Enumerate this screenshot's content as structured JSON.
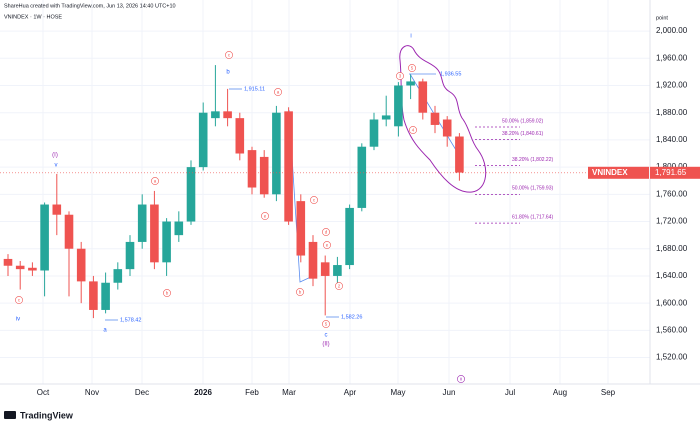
{
  "header": {
    "credit": "ShareHua created with TradingView.com, Jun 13, 2026 14:40 UTC+10",
    "symbol": "VNINDEX · 1W · HOSE"
  },
  "chart_data": {
    "type": "candlestick",
    "axis_unit": "point",
    "up_color": "#26a69a",
    "down_color": "#ef5350",
    "open": [
      1665,
      1655,
      1652,
      1648,
      1745,
      1730,
      1680,
      1632,
      1590,
      1630,
      1650,
      1690,
      1745,
      1660,
      1700,
      1720,
      1800,
      1872,
      1882,
      1872,
      1825,
      1815,
      1760,
      1882,
      1750,
      1690,
      1660,
      1640,
      1656,
      1740,
      1830,
      1870,
      1860,
      1920,
      1926,
      1880,
      1870,
      1845
    ],
    "high": [
      1672,
      1662,
      1660,
      1748,
      1790,
      1735,
      1690,
      1640,
      1645,
      1660,
      1700,
      1760,
      1765,
      1725,
      1735,
      1810,
      1895,
      1950,
      1915,
      1880,
      1830,
      1825,
      1890,
      1888,
      1760,
      1700,
      1670,
      1668,
      1745,
      1835,
      1880,
      1905,
      1925,
      1936,
      1930,
      1890,
      1875,
      1850
    ],
    "low": [
      1640,
      1620,
      1640,
      1610,
      1700,
      1610,
      1600,
      1578,
      1585,
      1620,
      1640,
      1680,
      1650,
      1640,
      1690,
      1715,
      1795,
      1860,
      1860,
      1810,
      1760,
      1755,
      1750,
      1715,
      1660,
      1625,
      1582,
      1630,
      1650,
      1735,
      1825,
      1860,
      1845,
      1900,
      1870,
      1850,
      1830,
      1780
    ],
    "close": [
      1655,
      1650,
      1648,
      1745,
      1730,
      1680,
      1632,
      1590,
      1630,
      1650,
      1690,
      1745,
      1660,
      1720,
      1720,
      1800,
      1880,
      1882,
      1872,
      1820,
      1770,
      1760,
      1880,
      1720,
      1670,
      1636,
      1640,
      1656,
      1740,
      1830,
      1870,
      1876,
      1920,
      1926,
      1880,
      1862,
      1845,
      1792
    ],
    "ylim": [
      1487,
      2031
    ],
    "yticks": [
      {
        "value": 2000,
        "label": "2,000.00"
      },
      {
        "value": 1960,
        "label": "1,960.00"
      },
      {
        "value": 1920,
        "label": "1,920.00"
      },
      {
        "value": 1880,
        "label": "1,880.00"
      },
      {
        "value": 1840,
        "label": "1,840.00"
      },
      {
        "value": 1800,
        "label": "1,800.00"
      },
      {
        "value": 1760,
        "label": "1,760.00"
      },
      {
        "value": 1720,
        "label": "1,720.00"
      },
      {
        "value": 1680,
        "label": "1,680.00"
      },
      {
        "value": 1640,
        "label": "1,640.00"
      },
      {
        "value": 1600,
        "label": "1,600.00"
      },
      {
        "value": 1560,
        "label": "1,560.00"
      },
      {
        "value": 1520,
        "label": "1,520.00"
      }
    ],
    "xlabels": [
      "Oct",
      "Nov",
      "Dec",
      "2026",
      "Feb",
      "Mar",
      "Apr",
      "May",
      "Jun",
      "Jul",
      "Aug",
      "Sep"
    ],
    "last_price": {
      "name": "VNINDEX",
      "value": 1791.65,
      "label": "1,791.65"
    },
    "price_notes": [
      "1,915.11",
      "1,578.42",
      "1,582.26",
      "1,936.55"
    ],
    "fib_levels": [
      {
        "value": 1859.02,
        "label": "50.00% (1,859.02)"
      },
      {
        "value": 1840.61,
        "label": "38.20% (1,840.61)"
      },
      {
        "value": 1802.22,
        "label": "38.20% (1,802.22)"
      },
      {
        "value": 1759.93,
        "label": "50.00% (1,759.93)"
      },
      {
        "value": 1717.64,
        "label": "61.80% (1,717.64)"
      }
    ],
    "wave_labels": [
      "(I)",
      "v",
      "iv",
      "a",
      "b",
      "c",
      "(II)",
      "i"
    ],
    "circled_labels": [
      "c",
      "a",
      "b",
      "c",
      "e",
      "a",
      "b",
      "c",
      "d",
      "e",
      "2",
      "5",
      "3",
      "5",
      "4",
      "ii"
    ]
  },
  "footer": {
    "logo": "TradingView"
  }
}
